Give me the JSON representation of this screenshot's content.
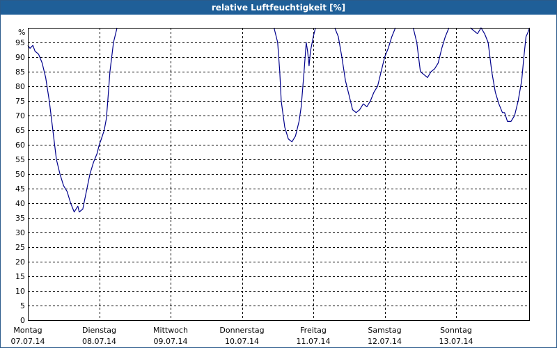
{
  "window": {
    "title": "relative Luftfeuchtigkeit [%]"
  },
  "chart_data": {
    "type": "line",
    "title": "relative Luftfeuchtigkeit [%]",
    "ylabel": "%",
    "xlabel": "",
    "ylim": [
      0,
      100
    ],
    "yticks": [
      0,
      5,
      10,
      15,
      20,
      25,
      30,
      35,
      40,
      45,
      50,
      55,
      60,
      65,
      70,
      75,
      80,
      85,
      90,
      95
    ],
    "grid": true,
    "line_color": "#00008b",
    "grid_color": "#000000",
    "days": [
      {
        "name": "Montag",
        "date": "07.07.14"
      },
      {
        "name": "Dienstag",
        "date": "08.07.14"
      },
      {
        "name": "Mittwoch",
        "date": "09.07.14"
      },
      {
        "name": "Donnerstag",
        "date": "10.07.14"
      },
      {
        "name": "Freitag",
        "date": "11.07.14"
      },
      {
        "name": "Samstag",
        "date": "12.07.14"
      },
      {
        "name": "Sonntag",
        "date": "13.07.14"
      }
    ],
    "series": [
      {
        "segments": [
          [
            [
              0,
              94
            ],
            [
              0.03,
              93
            ],
            [
              0.07,
              94
            ],
            [
              0.1,
              92
            ],
            [
              0.15,
              91
            ],
            [
              0.2,
              88
            ],
            [
              0.25,
              83
            ],
            [
              0.3,
              75
            ],
            [
              0.35,
              65
            ],
            [
              0.4,
              55
            ],
            [
              0.45,
              50
            ],
            [
              0.5,
              46
            ],
            [
              0.55,
              44
            ],
            [
              0.6,
              40
            ],
            [
              0.65,
              37
            ],
            [
              0.7,
              39
            ],
            [
              0.72,
              37
            ],
            [
              0.77,
              38
            ],
            [
              0.82,
              44
            ],
            [
              0.87,
              50
            ],
            [
              0.92,
              54
            ],
            [
              0.97,
              57
            ],
            [
              1.0,
              60
            ],
            [
              1.03,
              62
            ],
            [
              1.07,
              65
            ],
            [
              1.1,
              69
            ],
            [
              1.12,
              75
            ],
            [
              1.15,
              85
            ],
            [
              1.2,
              95
            ],
            [
              1.25,
              100
            ]
          ],
          [
            [
              3.45,
              100
            ],
            [
              3.5,
              95
            ],
            [
              3.53,
              85
            ],
            [
              3.55,
              75
            ],
            [
              3.6,
              66
            ],
            [
              3.65,
              62
            ],
            [
              3.7,
              61
            ],
            [
              3.75,
              63
            ],
            [
              3.8,
              68
            ],
            [
              3.83,
              73
            ],
            [
              3.87,
              85
            ],
            [
              3.9,
              95
            ],
            [
              3.92,
              92
            ],
            [
              3.94,
              87
            ],
            [
              3.96,
              92
            ],
            [
              4.0,
              97
            ],
            [
              4.03,
              100
            ]
          ],
          [
            [
              4.3,
              100
            ],
            [
              4.35,
              97
            ],
            [
              4.4,
              90
            ],
            [
              4.45,
              82
            ],
            [
              4.5,
              77
            ],
            [
              4.55,
              72
            ],
            [
              4.6,
              71
            ],
            [
              4.65,
              72
            ],
            [
              4.7,
              74
            ],
            [
              4.75,
              73
            ],
            [
              4.8,
              75
            ],
            [
              4.85,
              78
            ],
            [
              4.9,
              80
            ],
            [
              4.95,
              85
            ],
            [
              5.0,
              90
            ],
            [
              5.05,
              93
            ],
            [
              5.1,
              97
            ],
            [
              5.15,
              100
            ]
          ],
          [
            [
              5.4,
              100
            ],
            [
              5.45,
              95
            ],
            [
              5.5,
              85
            ],
            [
              5.55,
              84
            ],
            [
              5.6,
              83
            ],
            [
              5.65,
              85
            ],
            [
              5.7,
              86
            ],
            [
              5.75,
              88
            ],
            [
              5.8,
              93
            ],
            [
              5.85,
              97
            ],
            [
              5.9,
              100
            ]
          ],
          [
            [
              6.2,
              100
            ],
            [
              6.25,
              99
            ],
            [
              6.3,
              98
            ],
            [
              6.35,
              100
            ],
            [
              6.4,
              98
            ],
            [
              6.45,
              95
            ],
            [
              6.5,
              85
            ],
            [
              6.55,
              78
            ],
            [
              6.6,
              74
            ],
            [
              6.65,
              71
            ],
            [
              6.68,
              71
            ],
            [
              6.72,
              68
            ],
            [
              6.77,
              68
            ],
            [
              6.82,
              70
            ],
            [
              6.87,
              75
            ],
            [
              6.92,
              82
            ],
            [
              6.95,
              90
            ],
            [
              6.98,
              97
            ],
            [
              7.0,
              98
            ],
            [
              7.03,
              100
            ]
          ]
        ]
      }
    ]
  }
}
